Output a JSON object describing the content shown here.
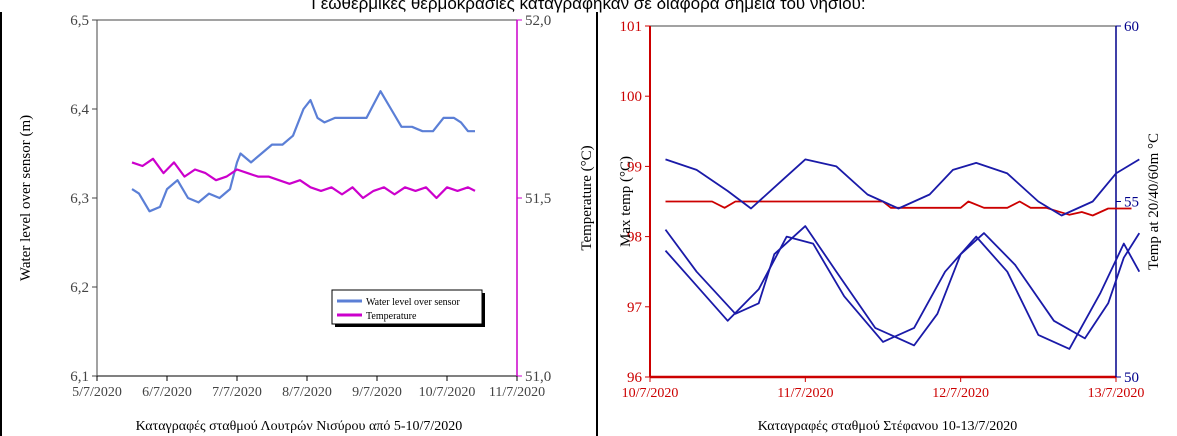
{
  "top_caption": "Γεωθερμικές θερμοκρασίες καταγράφηκαν σε διάφορα σημεία του νησιού:",
  "left_figure": {
    "caption": "Καταγραφές σταθμού Λουτρών Νισύρου από 5-10/7/2020"
  },
  "right_figure": {
    "caption": "Καταγραφές σταθμού Στέφανου 10-13/7/2020"
  },
  "chart_data": [
    {
      "type": "line",
      "xlabel": "",
      "x_ticks": [
        "5/7/2020",
        "6/7/2020",
        "7/7/2020",
        "8/7/2020",
        "9/7/2020",
        "10/7/2020",
        "11/7/2020"
      ],
      "xlim": [
        0,
        6
      ],
      "y_left": {
        "label": "Water level over sensor (m)",
        "lim": [
          6.1,
          6.5
        ],
        "ticks": [
          "6,1",
          "6,2",
          "6,3",
          "6,4",
          "6,5"
        ]
      },
      "y_right": {
        "label": "Temperature (°C)",
        "lim": [
          51.0,
          52.0
        ],
        "ticks": [
          "51,0",
          "51,5",
          "52,0"
        ],
        "color": "#cc00cc"
      },
      "legend": {
        "placement": "lower-right",
        "entries": [
          "Water level over sensor",
          "Temperature"
        ]
      },
      "series": [
        {
          "name": "Water level over sensor",
          "axis": "left",
          "color": "#5b7fd6",
          "x": [
            0.5,
            0.6,
            0.75,
            0.9,
            1.0,
            1.15,
            1.3,
            1.45,
            1.6,
            1.75,
            1.9,
            2.0,
            2.05,
            2.2,
            2.35,
            2.5,
            2.65,
            2.8,
            2.95,
            3.05,
            3.15,
            3.25,
            3.4,
            3.55,
            3.7,
            3.85,
            3.95,
            4.05,
            4.2,
            4.35,
            4.5,
            4.65,
            4.8,
            4.95,
            5.1,
            5.2,
            5.3,
            5.4
          ],
          "y": [
            6.31,
            6.305,
            6.285,
            6.29,
            6.31,
            6.32,
            6.3,
            6.295,
            6.305,
            6.3,
            6.31,
            6.34,
            6.35,
            6.34,
            6.35,
            6.36,
            6.36,
            6.37,
            6.4,
            6.41,
            6.39,
            6.385,
            6.39,
            6.39,
            6.39,
            6.39,
            6.405,
            6.42,
            6.4,
            6.38,
            6.38,
            6.375,
            6.375,
            6.39,
            6.39,
            6.385,
            6.375,
            6.375
          ]
        },
        {
          "name": "Temperature",
          "axis": "right",
          "color": "#cc00cc",
          "x": [
            0.5,
            0.65,
            0.8,
            0.95,
            1.1,
            1.25,
            1.4,
            1.55,
            1.7,
            1.85,
            2.0,
            2.15,
            2.3,
            2.45,
            2.6,
            2.75,
            2.9,
            3.05,
            3.2,
            3.35,
            3.5,
            3.65,
            3.8,
            3.95,
            4.1,
            4.25,
            4.4,
            4.55,
            4.7,
            4.85,
            5.0,
            5.15,
            5.3,
            5.4
          ],
          "y": [
            51.6,
            51.59,
            51.61,
            51.57,
            51.6,
            51.56,
            51.58,
            51.57,
            51.55,
            51.56,
            51.58,
            51.57,
            51.56,
            51.56,
            51.55,
            51.54,
            51.55,
            51.53,
            51.52,
            51.53,
            51.51,
            51.53,
            51.5,
            51.52,
            51.53,
            51.51,
            51.53,
            51.52,
            51.53,
            51.5,
            51.53,
            51.52,
            51.53,
            51.52
          ]
        }
      ]
    },
    {
      "type": "line",
      "xlabel": "",
      "x_ticks": [
        "10/7/2020",
        "11/7/2020",
        "12/7/2020",
        "13/7/2020"
      ],
      "xlim": [
        0,
        3
      ],
      "y_left": {
        "label": "Max temp (°C)",
        "lim": [
          96,
          101
        ],
        "ticks": [
          "96",
          "97",
          "98",
          "99",
          "100",
          "101"
        ],
        "color": "#cc0000"
      },
      "y_right": {
        "label": "Temp at 20/40/60m °C",
        "lim": [
          50,
          60
        ],
        "ticks": [
          "50",
          "55",
          "60"
        ],
        "color": "#00008b"
      },
      "series": [
        {
          "name": "",
          "axis": "left",
          "color": "#cc0000",
          "x": [
            0.1,
            0.3,
            0.4,
            0.48,
            0.55,
            0.7,
            0.9,
            1.1,
            1.3,
            1.5,
            1.55,
            1.7,
            1.9,
            2.0,
            2.05,
            2.15,
            2.3,
            2.38,
            2.45,
            2.55,
            2.7,
            2.78,
            2.85,
            2.95,
            3.1
          ],
          "y": [
            98.5,
            98.5,
            98.5,
            98.41,
            98.5,
            98.5,
            98.5,
            98.5,
            98.5,
            98.5,
            98.41,
            98.41,
            98.41,
            98.41,
            98.5,
            98.41,
            98.41,
            98.5,
            98.41,
            98.41,
            98.31,
            98.35,
            98.3,
            98.4,
            98.4
          ]
        },
        {
          "name": "",
          "axis": "right",
          "color": "#1a1aa8",
          "x": [
            0.1,
            0.3,
            0.5,
            0.65,
            0.85,
            1.0,
            1.2,
            1.4,
            1.6,
            1.8,
            1.95,
            2.1,
            2.3,
            2.5,
            2.65,
            2.85,
            3.0,
            3.15
          ],
          "y": [
            56.2,
            55.9,
            55.3,
            54.8,
            55.6,
            56.2,
            56.0,
            55.2,
            54.8,
            55.2,
            55.9,
            56.1,
            55.8,
            55.0,
            54.6,
            55.0,
            55.8,
            56.2
          ]
        },
        {
          "name": "",
          "axis": "right",
          "color": "#1a1aa8",
          "x": [
            0.1,
            0.3,
            0.55,
            0.7,
            0.8,
            1.0,
            1.2,
            1.45,
            1.7,
            1.85,
            2.0,
            2.15,
            2.35,
            2.6,
            2.8,
            2.95,
            3.05,
            3.15
          ],
          "y": [
            54.2,
            53.0,
            51.8,
            52.1,
            53.5,
            54.3,
            53.0,
            51.4,
            50.9,
            51.8,
            53.5,
            54.1,
            53.2,
            51.6,
            51.1,
            52.1,
            53.4,
            54.1
          ]
        },
        {
          "name": "",
          "axis": "right",
          "color": "#1a1aa8",
          "x": [
            0.1,
            0.3,
            0.5,
            0.7,
            0.88,
            1.05,
            1.25,
            1.5,
            1.7,
            1.9,
            2.1,
            2.3,
            2.5,
            2.7,
            2.9,
            3.05,
            3.15
          ],
          "y": [
            53.6,
            52.6,
            51.6,
            52.5,
            54.0,
            53.8,
            52.3,
            51.0,
            51.4,
            53.0,
            54.0,
            53.0,
            51.2,
            50.8,
            52.4,
            53.8,
            53.0
          ]
        }
      ]
    }
  ]
}
